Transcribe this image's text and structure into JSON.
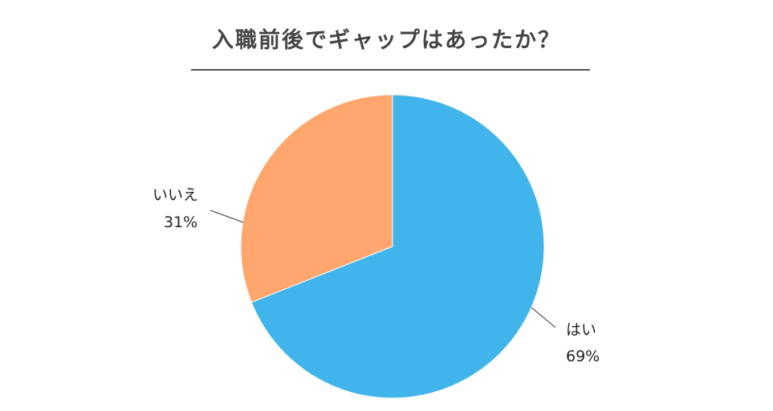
{
  "title": "入職前後でギャップはあったか？",
  "chart_data": {
    "type": "pie",
    "title": "入職前後でギャップはあったか？",
    "start": "top",
    "direction": "clockwise",
    "slices": [
      {
        "label": "はい",
        "value": 69,
        "value_label": "69%",
        "color": "#42b4ec"
      },
      {
        "label": "いいえ",
        "value": 31,
        "value_label": "31%",
        "color": "#ffa66e"
      }
    ]
  }
}
